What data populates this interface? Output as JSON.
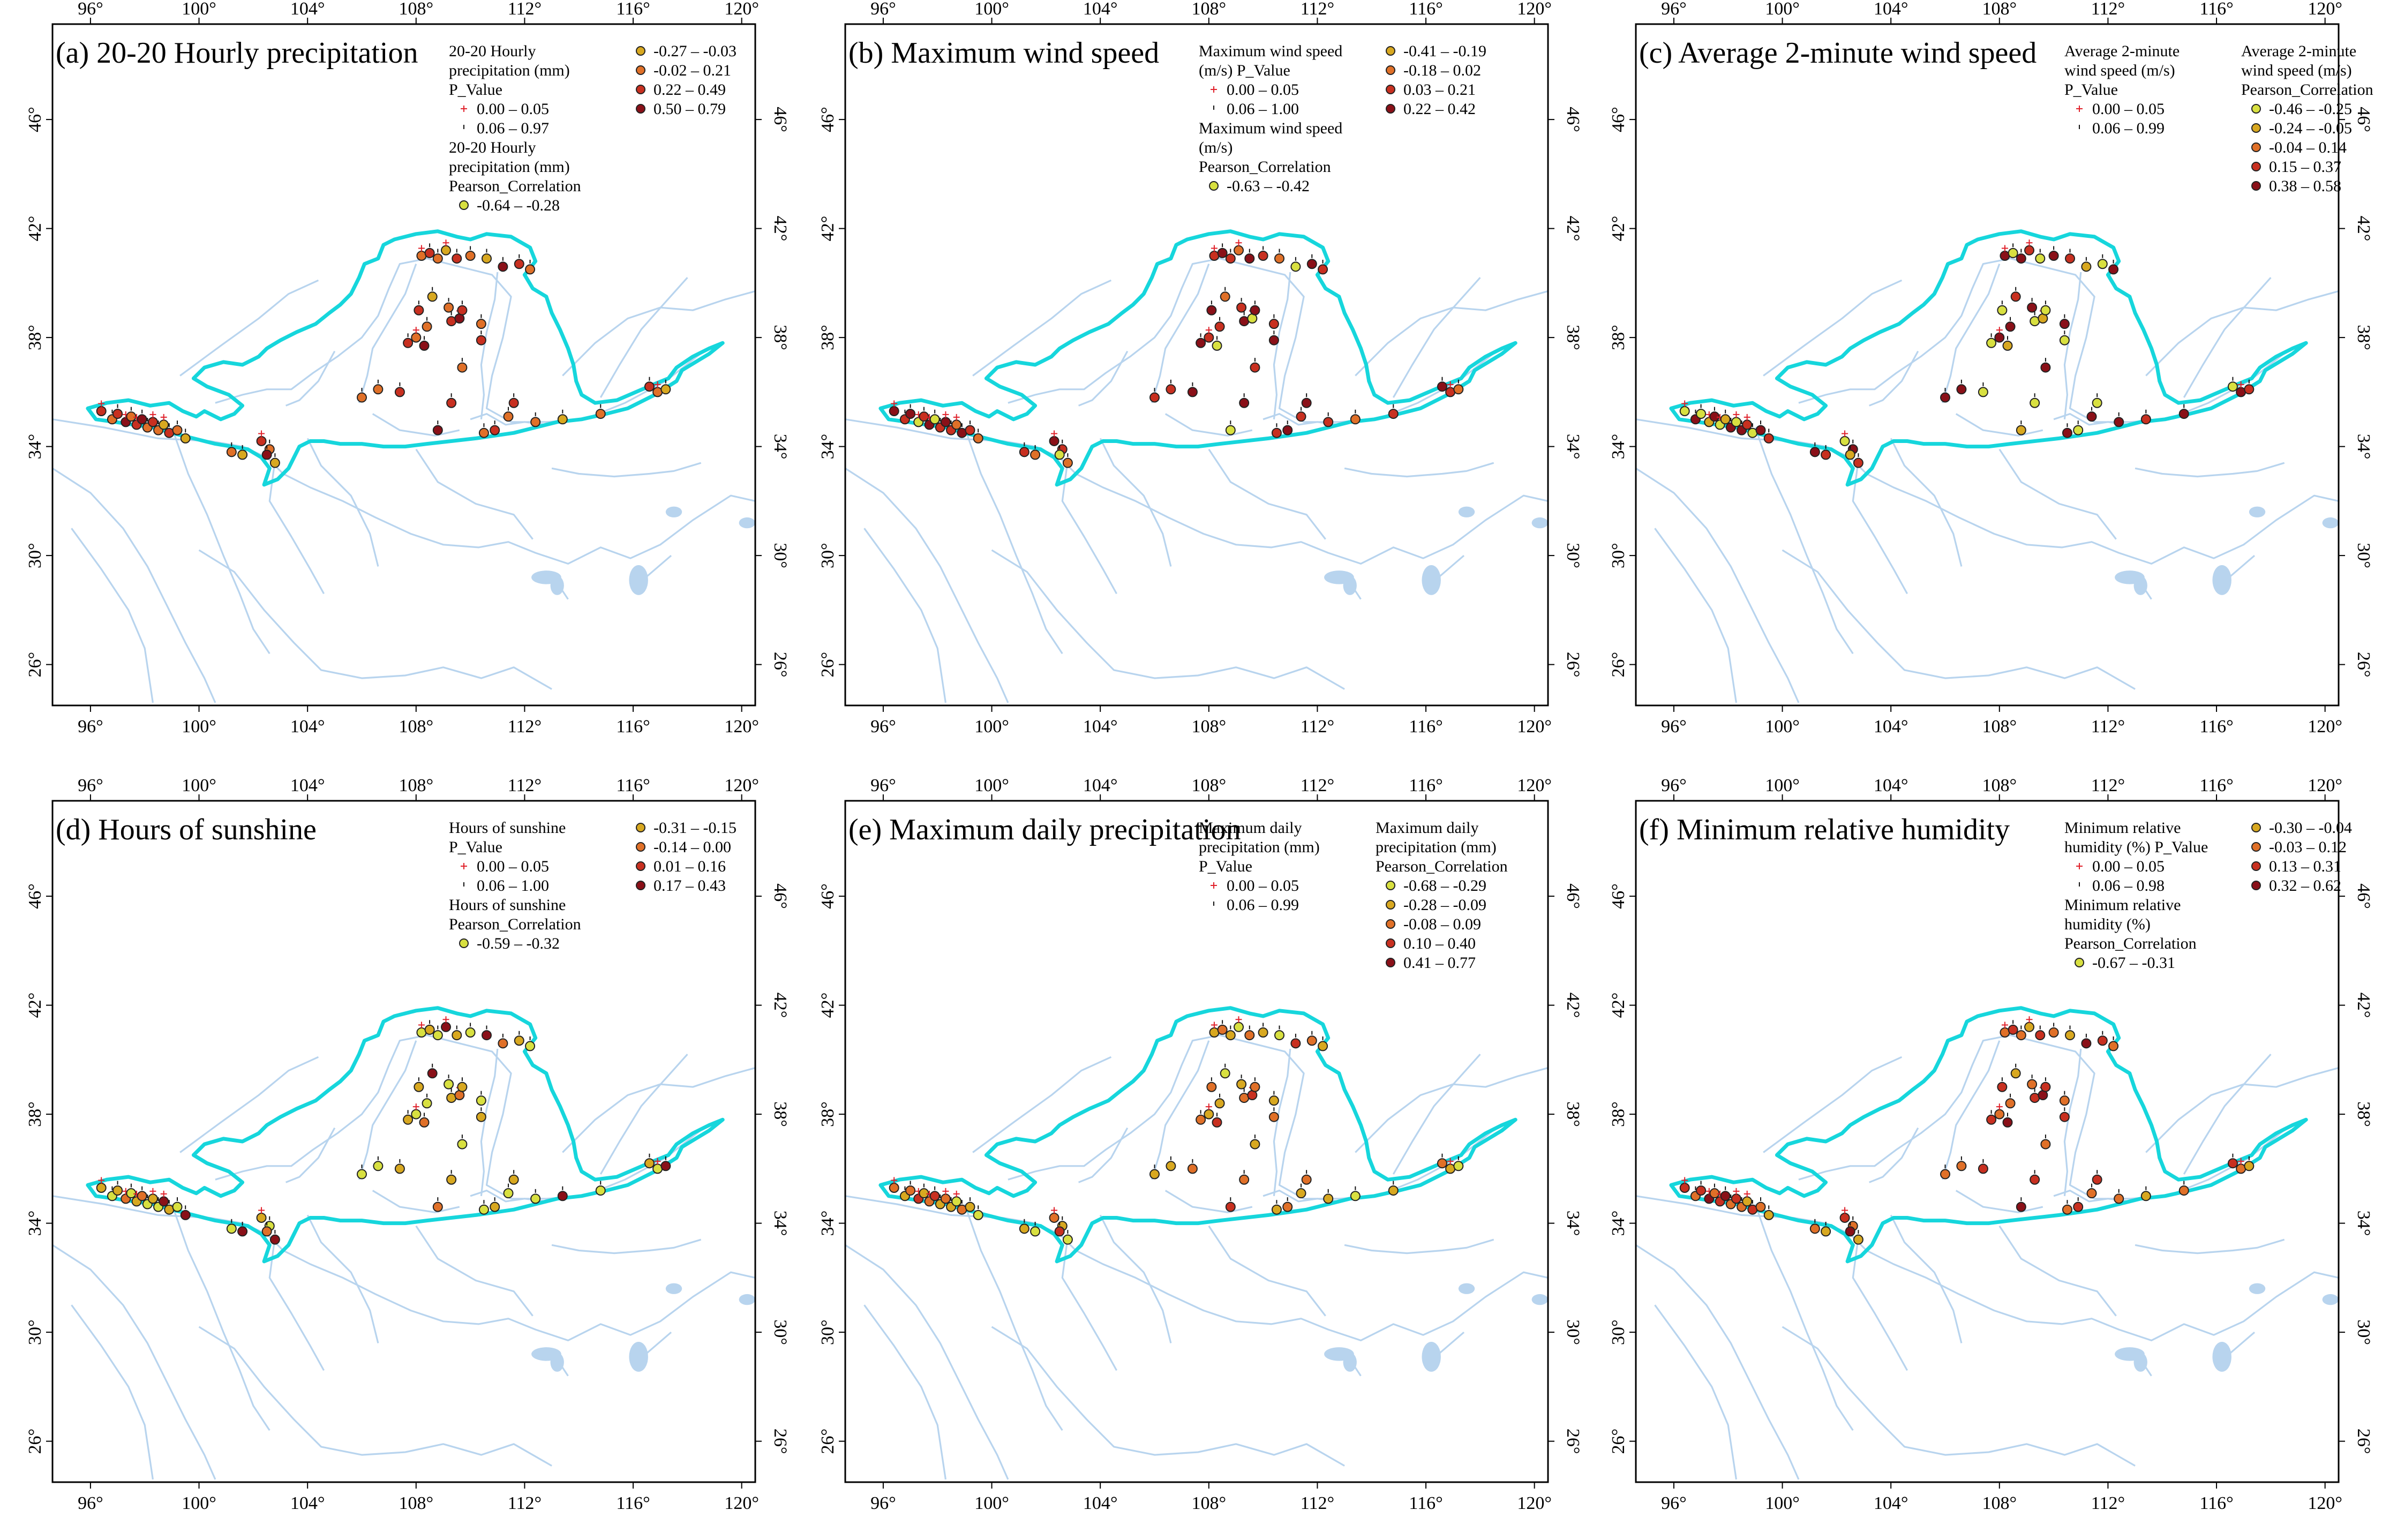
{
  "colors": {
    "river": "#b8d4ee",
    "lake": "#b8d4ee",
    "basin": "#16d6dc",
    "frame": "#000000",
    "plus": "#e0202a",
    "classes": [
      "#d8e040",
      "#d8a820",
      "#e07028",
      "#c83020",
      "#8a1018"
    ]
  },
  "axes": {
    "lon_labels": [
      "96°",
      "100°",
      "104°",
      "108°",
      "112°",
      "116°",
      "120°"
    ],
    "lat_labels": [
      "26°",
      "30°",
      "34°",
      "38°",
      "42°",
      "46°"
    ]
  },
  "panels": [
    {
      "title": "(a) 20-20 Hourly precipitation",
      "legend_p": {
        "title": [
          "20-20 Hourly",
          "precipitation (mm)",
          "P_Value"
        ],
        "items": [
          "0.00 – 0.05",
          "0.06 – 0.97"
        ]
      },
      "legend_r": {
        "title": [
          "20-20 Hourly",
          "precipitation (mm)",
          "Pearson_Correlation"
        ],
        "items": [
          "-0.64 – -0.28",
          "-0.27 – -0.03",
          "-0.02 – 0.21",
          "0.22 – 0.49",
          "0.50 – 0.79"
        ]
      }
    },
    {
      "title": "(b) Maximum wind speed",
      "legend_p": {
        "title": [
          "Maximum wind speed",
          "(m/s) P_Value"
        ],
        "items": [
          "0.00 – 0.05",
          "0.06 – 1.00"
        ]
      },
      "legend_r": {
        "title": [
          "Maximum wind speed",
          "(m/s)",
          "Pearson_Correlation"
        ],
        "items": [
          "-0.63 – -0.42",
          "-0.41 – -0.19",
          "-0.18 – 0.02",
          "0.03 – 0.21",
          "0.22 – 0.42"
        ]
      }
    },
    {
      "title": "(c) Average 2-minute wind speed",
      "legend_p": {
        "title": [
          "Average 2-minute",
          "wind speed (m/s)",
          "P_Value"
        ],
        "items": [
          "0.00 – 0.05",
          "0.06 – 0.99"
        ]
      },
      "legend_r": {
        "title": [
          "Average 2-minute",
          "wind speed (m/s)",
          "Pearson_Correlation"
        ],
        "items": [
          "-0.46 – -0.25",
          "-0.24 – -0.05",
          "-0.04 – 0.14",
          "0.15 – 0.37",
          "0.38 – 0.58"
        ]
      }
    },
    {
      "title": "(d) Hours of sunshine",
      "legend_p": {
        "title": [
          "Hours of sunshine",
          "P_Value"
        ],
        "items": [
          "0.00 – 0.05",
          "0.06 – 1.00"
        ]
      },
      "legend_r": {
        "title": [
          "Hours of sunshine",
          "Pearson_Correlation"
        ],
        "items": [
          "-0.59 – -0.32",
          "-0.31 – -0.15",
          "-0.14 – 0.00",
          "0.01 – 0.16",
          "0.17 – 0.43"
        ]
      }
    },
    {
      "title": "(e) Maximum daily precipitation",
      "legend_p": {
        "title": [
          "Maximum daily",
          "precipitation (mm)",
          "P_Value"
        ],
        "items": [
          "0.00 – 0.05",
          "0.06 – 0.99"
        ]
      },
      "legend_r": {
        "title": [
          "Maximum daily",
          "precipitation (mm)",
          "Pearson_Correlation"
        ],
        "items": [
          "-0.68 – -0.29",
          "-0.28 – -0.09",
          "-0.08 – 0.09",
          "0.10 – 0.40",
          "0.41 – 0.77"
        ]
      }
    },
    {
      "title": "(f) Minimum relative humidity",
      "legend_p": {
        "title": [
          "Minimum relative",
          "humidity (%) P_Value"
        ],
        "items": [
          "0.00 – 0.05",
          "0.06 – 0.98"
        ]
      },
      "legend_r": {
        "title": [
          "Minimum relative",
          "humidity (%)",
          "Pearson_Correlation"
        ],
        "items": [
          "-0.67 – -0.31",
          "-0.30 – -0.04",
          "-0.03 – 0.12",
          "0.13 – 0.31",
          "0.32 – 0.62"
        ]
      }
    }
  ]
}
